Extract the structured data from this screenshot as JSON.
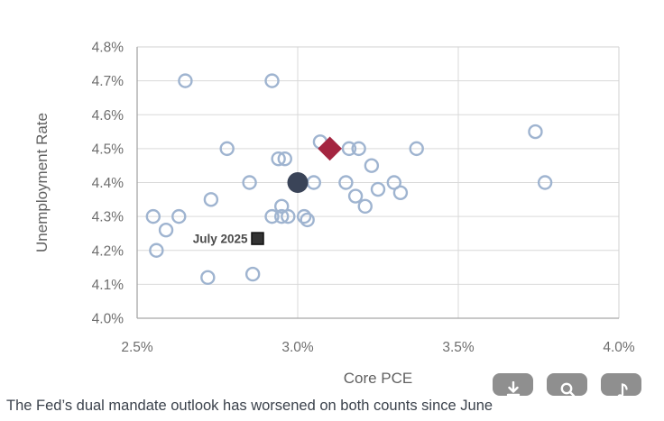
{
  "caption": "The Fed’s dual mandate outlook has worsened on both counts since June",
  "colors": {
    "open_circle": "#9fb4d0",
    "navy_dot": "#3a4458",
    "red_diamond": "#a42540",
    "black_square": "#333333",
    "gridline": "#d9d9d9",
    "outer_border": "#d2d2d2",
    "axis_line": "#a6a6a6",
    "tick_text": "#6e6e6e",
    "axis_title_text": "#616161",
    "annotation_text": "#4a4a4a",
    "caption_text": "#3b424c",
    "toolbar_button": "#8f8f8f",
    "toolbar_icon": "#ffffff"
  },
  "toolbar": {
    "buttons": [
      {
        "icon": "download-icon"
      },
      {
        "icon": "search-icon"
      },
      {
        "icon": "note-icon"
      }
    ]
  },
  "chart_data": {
    "type": "scatter",
    "title": "",
    "xlabel": "Core PCE",
    "ylabel": "Unemployment Rate",
    "xlim": [
      2.5,
      4.0
    ],
    "ylim": [
      4.0,
      4.8
    ],
    "grid": true,
    "x_ticks": [
      {
        "value": 2.5,
        "label": "2.5%"
      },
      {
        "value": 3.0,
        "label": "3.0%"
      },
      {
        "value": 3.5,
        "label": "3.5%"
      },
      {
        "value": 4.0,
        "label": "4.0%"
      }
    ],
    "y_ticks": [
      {
        "value": 4.0,
        "label": "4.0%"
      },
      {
        "value": 4.1,
        "label": "4.1%"
      },
      {
        "value": 4.2,
        "label": "4.2%"
      },
      {
        "value": 4.3,
        "label": "4.3%"
      },
      {
        "value": 4.4,
        "label": "4.4%"
      },
      {
        "value": 4.5,
        "label": "4.5%"
      },
      {
        "value": 4.6,
        "label": "4.6%"
      },
      {
        "value": 4.7,
        "label": "4.7%"
      },
      {
        "value": 4.8,
        "label": "4.8%"
      }
    ],
    "series": [
      {
        "name": "forecast-dots",
        "marker": "open-circle",
        "color": "#9fb4d0",
        "points": [
          [
            2.65,
            4.7
          ],
          [
            2.92,
            4.7
          ],
          [
            3.74,
            4.55
          ],
          [
            2.78,
            4.5
          ],
          [
            3.07,
            4.52
          ],
          [
            3.16,
            4.5
          ],
          [
            3.19,
            4.5
          ],
          [
            3.37,
            4.5
          ],
          [
            2.94,
            4.47
          ],
          [
            2.96,
            4.47
          ],
          [
            3.23,
            4.45
          ],
          [
            2.85,
            4.4
          ],
          [
            3.05,
            4.4
          ],
          [
            3.15,
            4.4
          ],
          [
            3.3,
            4.4
          ],
          [
            3.77,
            4.4
          ],
          [
            3.25,
            4.38
          ],
          [
            3.32,
            4.37
          ],
          [
            3.18,
            4.36
          ],
          [
            2.73,
            4.35
          ],
          [
            2.95,
            4.33
          ],
          [
            3.21,
            4.33
          ],
          [
            2.55,
            4.3
          ],
          [
            2.63,
            4.3
          ],
          [
            2.92,
            4.3
          ],
          [
            2.95,
            4.3
          ],
          [
            2.97,
            4.3
          ],
          [
            3.02,
            4.3
          ],
          [
            3.03,
            4.29
          ],
          [
            2.59,
            4.26
          ],
          [
            2.56,
            4.2
          ],
          [
            2.72,
            4.12
          ],
          [
            2.86,
            4.13
          ]
        ]
      },
      {
        "name": "large-navy-dot",
        "marker": "filled-circle",
        "color": "#3a4458",
        "points": [
          [
            3.0,
            4.4
          ]
        ]
      },
      {
        "name": "red-diamond",
        "marker": "diamond",
        "color": "#a42540",
        "points": [
          [
            3.1,
            4.5
          ]
        ]
      },
      {
        "name": "black-square",
        "marker": "filled-square",
        "color": "#333333",
        "points": [
          [
            2.875,
            4.235
          ]
        ],
        "annotation": "July 2025"
      }
    ]
  }
}
